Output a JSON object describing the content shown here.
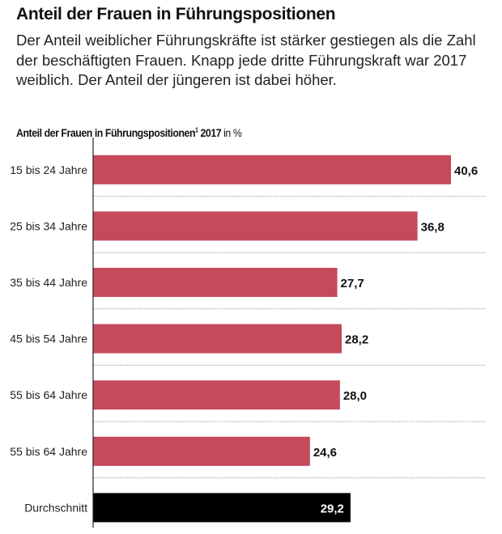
{
  "title": "Anteil der Frauen in Führungspositionen",
  "subtitle": "Der Anteil weiblicher Führungskräfte ist stärker gestiegen als die Zahl der beschäftigten Frauen. Knapp jede dritte Führungskraft war 2017 weiblich. Der Anteil der jüngeren ist dabei höher.",
  "chart_data": {
    "type": "bar",
    "orientation": "horizontal",
    "title": "Anteil der Frauen in Führungspositionen",
    "title_footnote": "1",
    "title_year": "2017",
    "unit": "in %",
    "categories": [
      "15 bis 24 Jahre",
      "25 bis 34 Jahre",
      "35 bis 44 Jahre",
      "45 bis 54 Jahre",
      "55 bis 64 Jahre",
      "55 bis 64 Jahre",
      "Durchschnitt"
    ],
    "values": [
      40.6,
      36.8,
      27.7,
      28.2,
      28.0,
      24.6,
      29.2
    ],
    "labels": [
      "40,6",
      "36,8",
      "27,7",
      "28,2",
      "28,0",
      "24,6",
      "29,2"
    ],
    "colors": {
      "bar": "#c44a5c",
      "average": "#000000"
    },
    "xlim": [
      0,
      40.6
    ],
    "grid": "dotted separators"
  }
}
